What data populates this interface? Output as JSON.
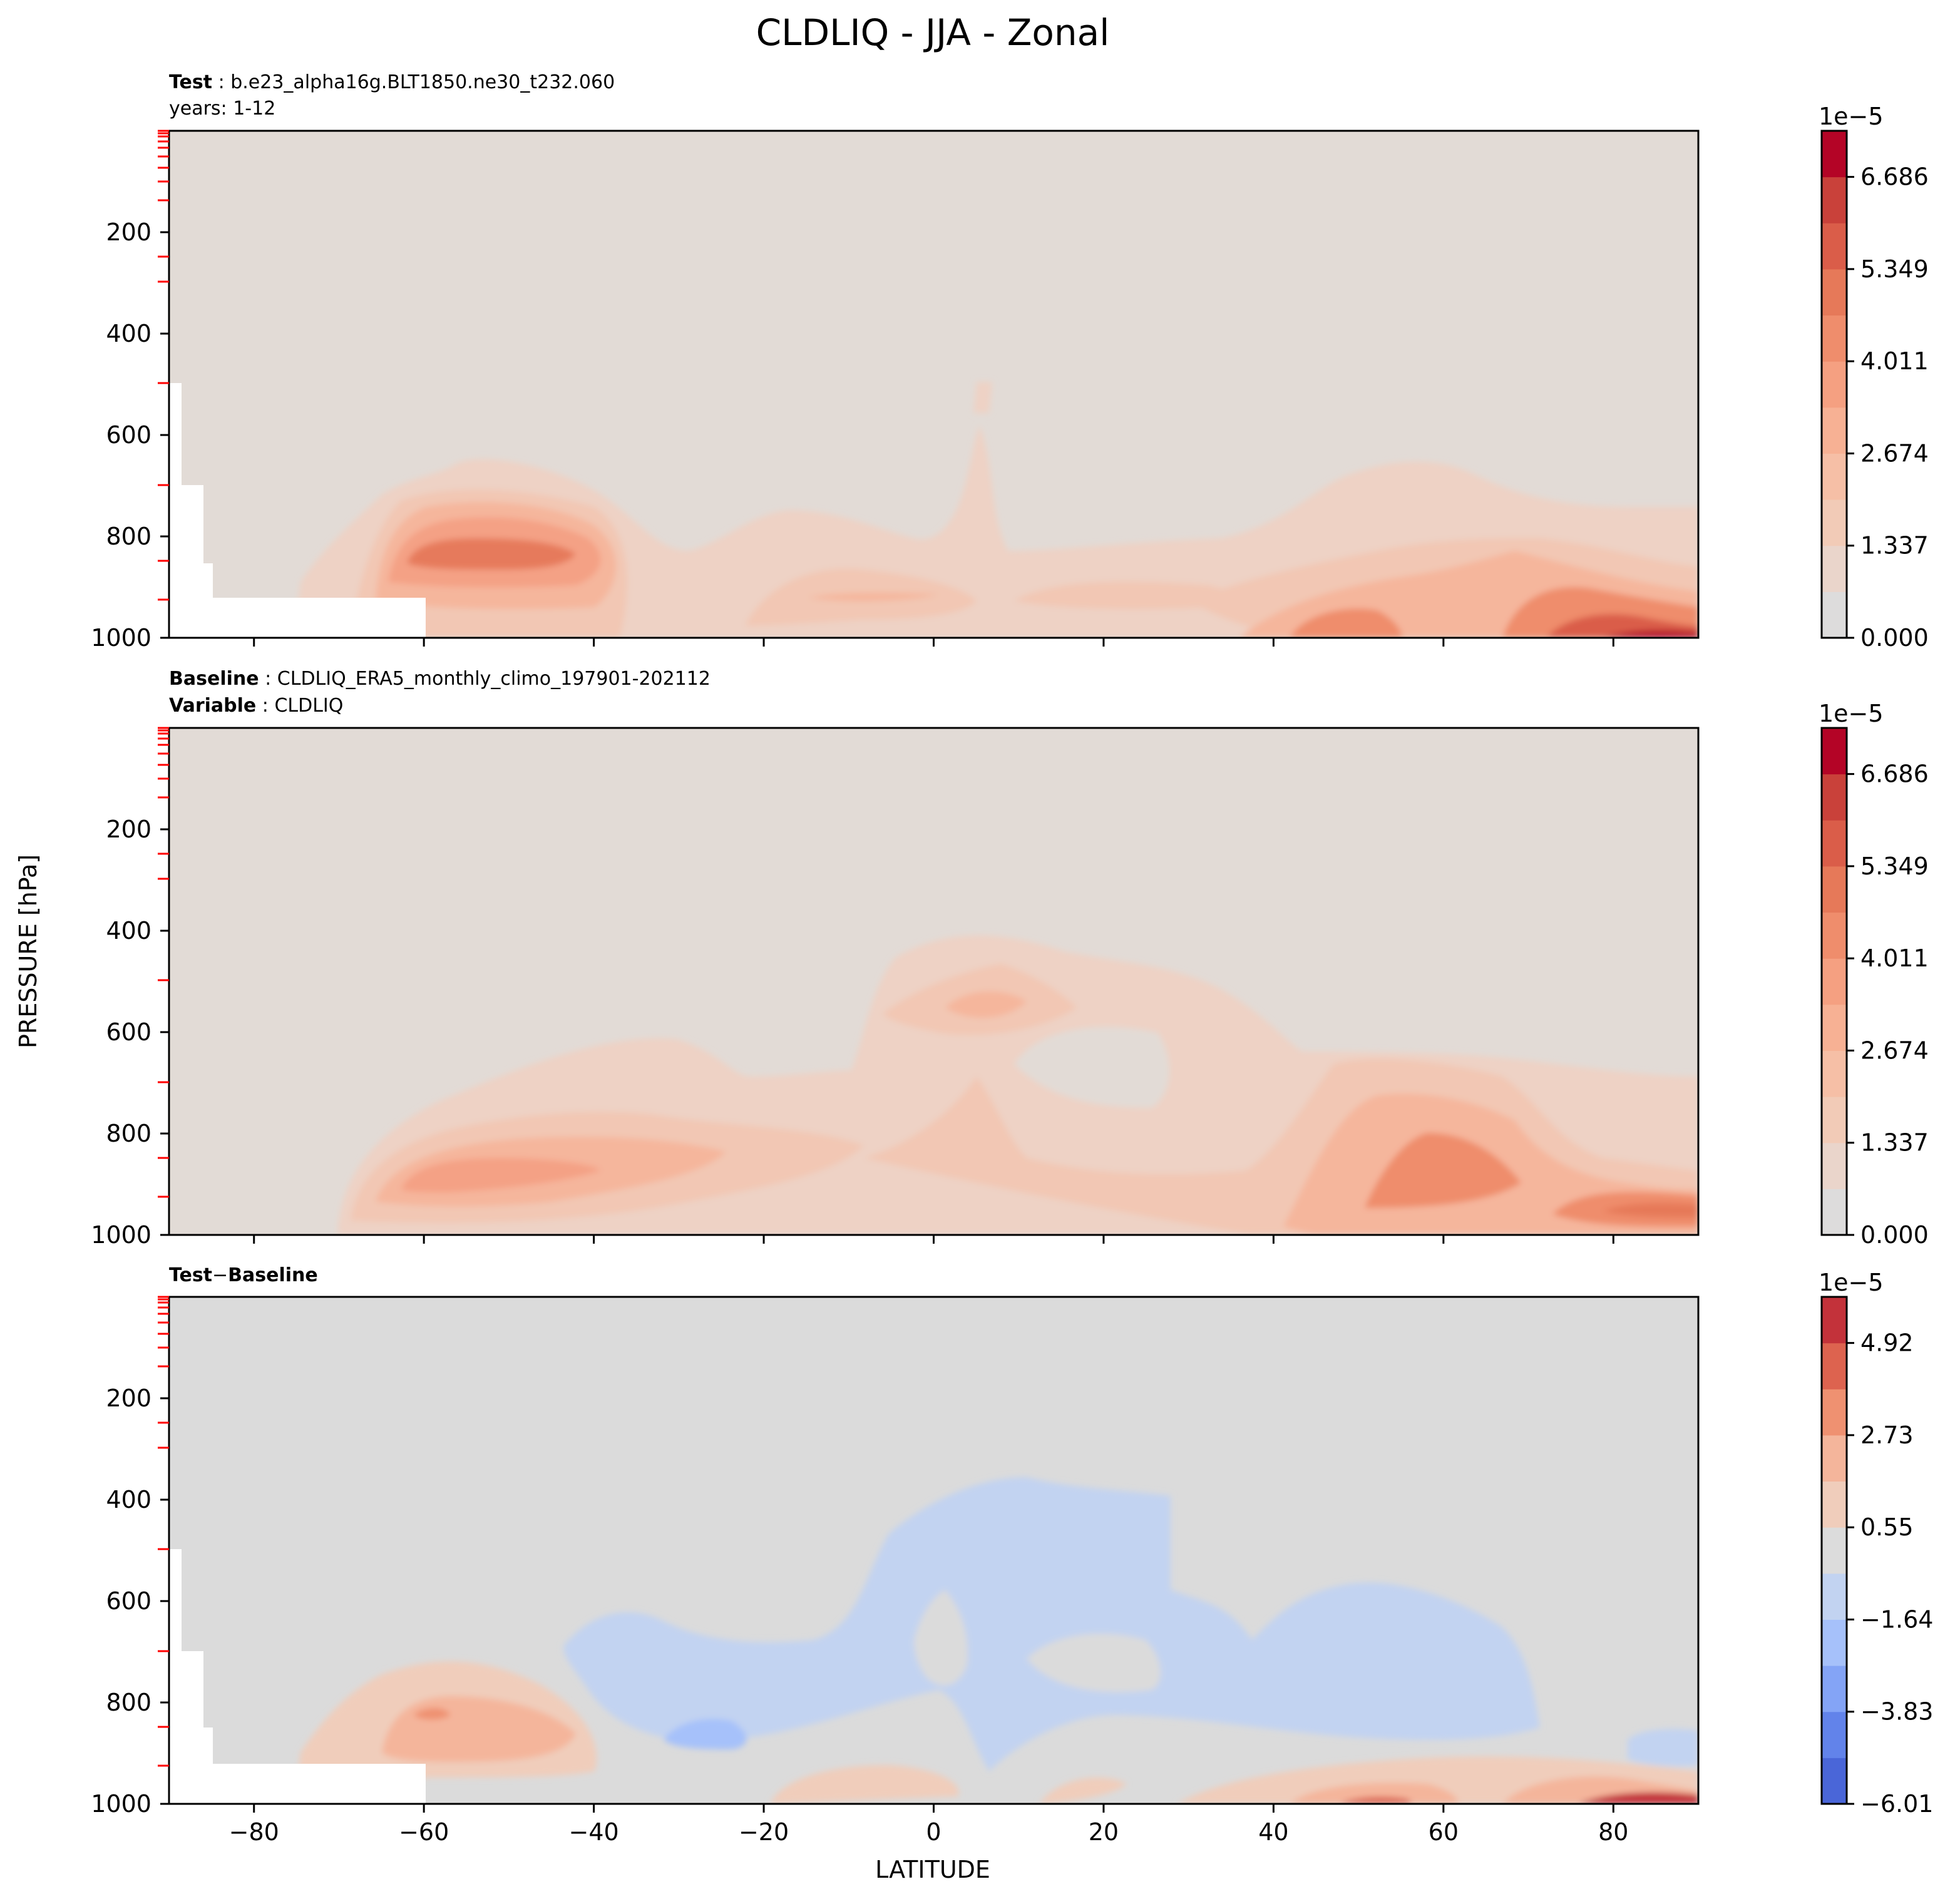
{
  "figure": {
    "title": "CLDLIQ - JJA - Zonal",
    "ylabel": "PRESSURE [hPa]",
    "xlabel": "LATITUDE"
  },
  "chart_data": [
    {
      "type": "contour",
      "panel": "test",
      "meta_label1": "Test",
      "meta_value1": "b.e23_alpha16g.BLT1850.ne30_t232.060",
      "meta_line2": "years: 1-12",
      "xlim": [
        -90,
        90
      ],
      "ylim": [
        1000,
        0
      ],
      "x_ticks": [
        -80,
        -60,
        -40,
        -20,
        0,
        20,
        40,
        60,
        80
      ],
      "y_ticks": [
        200,
        400,
        600,
        800,
        1000
      ],
      "colorbar": {
        "exponent_label": "1e−5",
        "tick_labels": [
          "0.000",
          "1.337",
          "2.674",
          "4.011",
          "5.349",
          "6.686"
        ],
        "levels": 11,
        "colors": [
          "#dddcdc",
          "#ead5cb",
          "#f2cbb7",
          "#f6bfa6",
          "#f7b194",
          "#f5a081",
          "#ef8d6c",
          "#e67959",
          "#da5d49",
          "#c9413a",
          "#b40426"
        ]
      },
      "features": [
        "southern mid-latitude max near -52°, 850 hPa",
        "arctic low-level max near 80°N, 1000 hPa",
        "weak tropical tower near 7°N"
      ]
    },
    {
      "type": "contour",
      "panel": "baseline",
      "meta_label1": "Baseline",
      "meta_value1": "CLDLIQ_ERA5_monthly_climo_197901-202112",
      "meta_label2": "Variable",
      "meta_value2": "CLDLIQ",
      "xlim": [
        -90,
        90
      ],
      "ylim": [
        1000,
        0
      ],
      "x_ticks": [
        -80,
        -60,
        -40,
        -20,
        0,
        20,
        40,
        60,
        80
      ],
      "y_ticks": [
        200,
        400,
        600,
        800,
        1000
      ],
      "colorbar": {
        "exponent_label": "1e−5",
        "tick_labels": [
          "0.000",
          "1.337",
          "2.674",
          "4.011",
          "5.349",
          "6.686"
        ],
        "levels": 11,
        "colors": [
          "#dddcdc",
          "#ead5cb",
          "#f2cbb7",
          "#f6bfa6",
          "#f7b194",
          "#f5a081",
          "#ef8d6c",
          "#e67959",
          "#da5d49",
          "#c9413a",
          "#b40426"
        ]
      },
      "features": [
        "broad low-level band -70° to 90°",
        "tropical mid-level max near 7°N, 550 hPa"
      ]
    },
    {
      "type": "contour",
      "panel": "difference",
      "meta_label1": "Test",
      "meta_operator": "−",
      "meta_label2": "Baseline",
      "xlim": [
        -90,
        90
      ],
      "ylim": [
        1000,
        0
      ],
      "x_ticks": [
        -80,
        -60,
        -40,
        -20,
        0,
        20,
        40,
        60,
        80
      ],
      "y_ticks": [
        200,
        400,
        600,
        800,
        1000
      ],
      "colorbar": {
        "exponent_label": "1e−5",
        "tick_labels": [
          "−6.01",
          "−3.83",
          "−1.64",
          "0.55",
          "2.73",
          "4.92"
        ],
        "levels": 11,
        "colors": [
          "#4a66d8",
          "#6283ea",
          "#84a4f6",
          "#a6c1fa",
          "#c2d3f1",
          "#dcdcdc",
          "#f0cdbb",
          "#f4b59b",
          "#ef9171",
          "#dd634f",
          "#c3323a"
        ]
      },
      "features": [
        "negative mid-level region -40° to 75°",
        "positive southern max near -58°, 850 hPa",
        "positive arctic surface max"
      ]
    }
  ]
}
